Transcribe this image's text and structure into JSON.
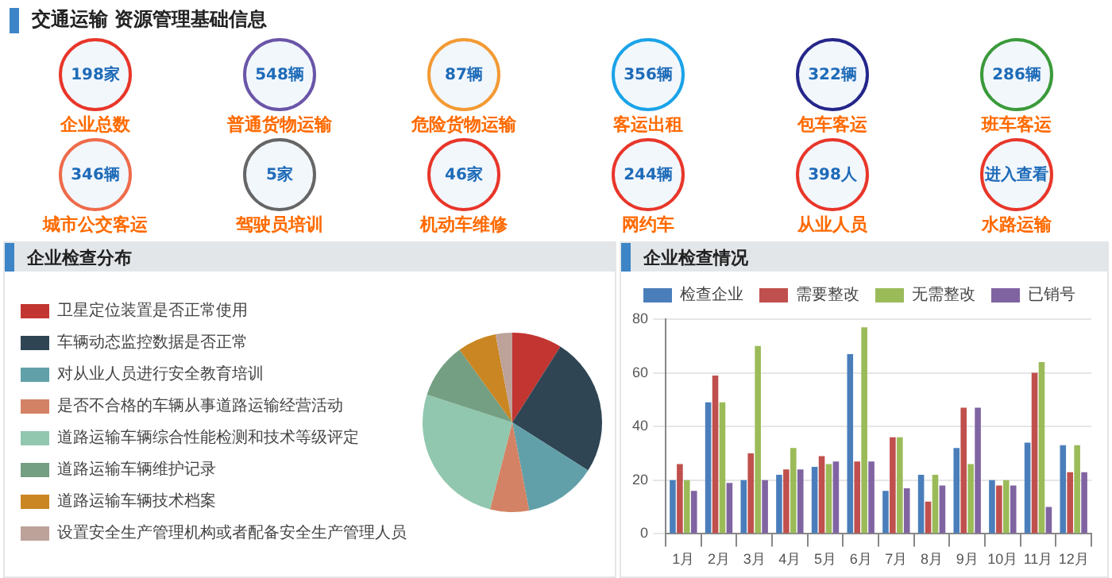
{
  "chart_data": [
    {
      "type": "other",
      "title": "交通运输 资源管理基础信息",
      "categories": [
        "企业总数",
        "普通货物运输",
        "危险货物运输",
        "客运出租",
        "包车客运",
        "班车客运",
        "城市公交客运",
        "驾驶员培训",
        "机动车维修",
        "网约车",
        "从业人员",
        "水路运输"
      ],
      "value_labels": [
        "198家",
        "548辆",
        "87辆",
        "356辆",
        "322辆",
        "286辆",
        "346辆",
        "5家",
        "46家",
        "244辆",
        "398人",
        "进入查看"
      ],
      "colors": [
        "#e8362a",
        "#6a55a8",
        "#f39a34",
        "#1aa3e8",
        "#25268a",
        "#3a9a3a",
        "#ee6b4a",
        "#666666",
        "#e8362a",
        "#e8362a",
        "#e8362a",
        "#e8362a"
      ]
    },
    {
      "type": "pie",
      "title": "企业检查分布",
      "categories": [
        "卫星定位装置是否正常使用",
        "车辆动态监控数据是否正常",
        "对从业人员进行安全教育培训",
        "是否不合格的车辆从事道路运输经营活动",
        "道路运输车辆综合性能检测和技术等级评定",
        "道路运输车辆维护记录",
        "道路运输车辆技术档案",
        "设置安全生产管理机构或者配备安全生产管理人员"
      ],
      "values": [
        9,
        25,
        13,
        7,
        26,
        10,
        7,
        3
      ],
      "colors": [
        "#c23531",
        "#2f4554",
        "#61a0a8",
        "#d48265",
        "#91c7ae",
        "#749f83",
        "#ca8622",
        "#bda29a"
      ],
      "legend": "left"
    },
    {
      "type": "bar",
      "title": "企业检查情况",
      "categories": [
        "1月",
        "2月",
        "3月",
        "4月",
        "5月",
        "6月",
        "7月",
        "8月",
        "9月",
        "10月",
        "11月",
        "12月"
      ],
      "series": [
        {
          "name": "检查企业",
          "color": "#4a7ebb",
          "values": [
            20,
            49,
            20,
            22,
            25,
            67,
            16,
            22,
            32,
            20,
            34,
            33
          ]
        },
        {
          "name": "需要整改",
          "color": "#c0504d",
          "values": [
            26,
            59,
            30,
            24,
            29,
            27,
            36,
            12,
            47,
            18,
            60,
            23
          ]
        },
        {
          "name": "无需整改",
          "color": "#9bbb59",
          "values": [
            20,
            49,
            70,
            32,
            26,
            77,
            36,
            22,
            26,
            20,
            64,
            33
          ]
        },
        {
          "name": "已销号",
          "color": "#8064a2",
          "values": [
            16,
            19,
            20,
            24,
            27,
            27,
            17,
            18,
            47,
            18,
            10,
            23
          ]
        }
      ],
      "ylim": [
        0,
        80
      ],
      "yticks": [
        0,
        20,
        40,
        60,
        80
      ],
      "grid": "y",
      "legend": "top"
    }
  ]
}
